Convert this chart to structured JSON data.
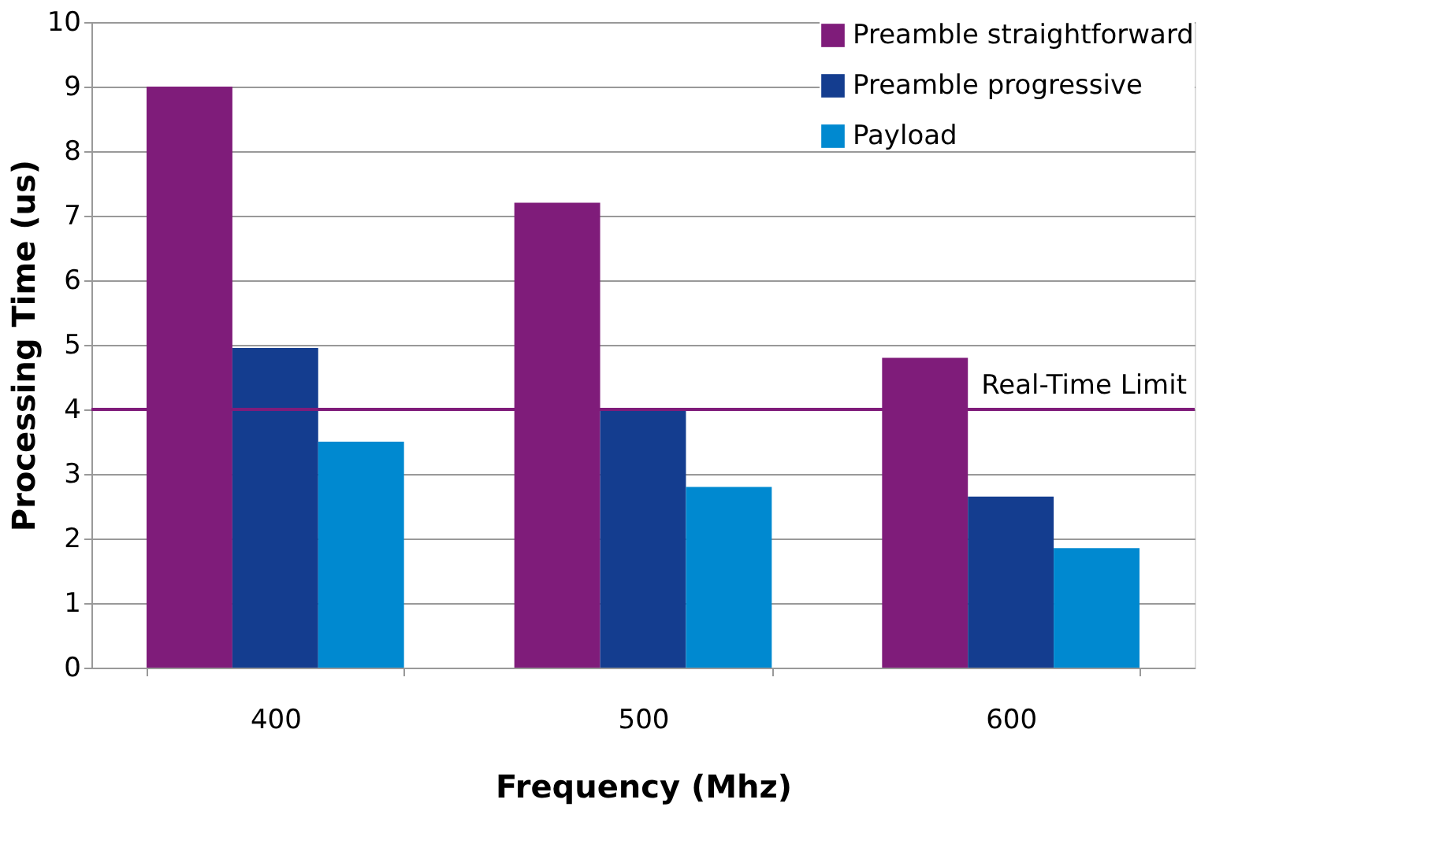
{
  "chart_data": {
    "type": "bar",
    "xlabel": "Frequency (Mhz)",
    "ylabel": "Processing Time (us)",
    "categories": [
      "400",
      "500",
      "600"
    ],
    "series": [
      {
        "name": "Preamble straightforward",
        "color": "#7f1c7a",
        "values": [
          9.0,
          7.2,
          4.8
        ]
      },
      {
        "name": "Preamble progressive",
        "color": "#143d8f",
        "values": [
          4.95,
          4.0,
          2.65
        ]
      },
      {
        "name": "Payload",
        "color": "#0089d0",
        "values": [
          3.5,
          2.8,
          1.85
        ]
      }
    ],
    "ylim": [
      0,
      10
    ],
    "yticks": [
      0,
      1,
      2,
      3,
      4,
      5,
      6,
      7,
      8,
      9,
      10
    ],
    "grid": "y",
    "legend": "top right",
    "ref_lines": [
      {
        "axis": "y",
        "value": 4,
        "label": "Real-Time Limit",
        "color": "#7f1c7a"
      }
    ]
  }
}
